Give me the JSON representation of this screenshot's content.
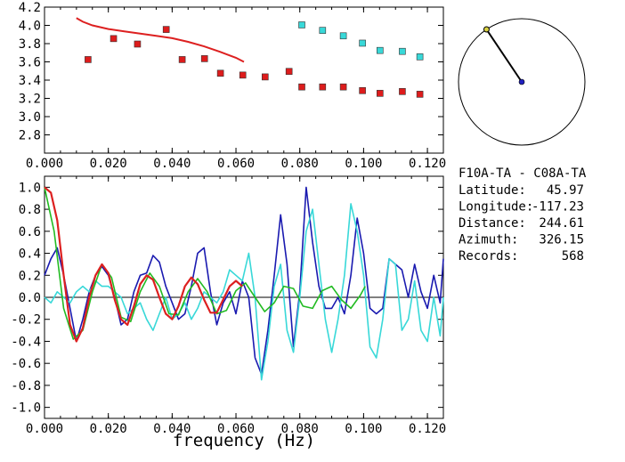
{
  "station_info": {
    "pair": "F10A-TA - C08A-TA",
    "rows": [
      {
        "label": "Latitude:",
        "value": "45.97"
      },
      {
        "label": "Longitude:",
        "value": "-117.23"
      },
      {
        "label": "Distance:",
        "value": "244.61"
      },
      {
        "label": "Azimuth:",
        "value": "326.15"
      },
      {
        "label": "Records:",
        "value": "568"
      }
    ]
  },
  "chart_data": [
    {
      "type": "scatter",
      "title": "",
      "xlabel": "",
      "ylabel": "",
      "xlim": [
        0,
        0.125
      ],
      "ylim": [
        2.6,
        4.2
      ],
      "xticks": [
        "0.000",
        "0.020",
        "0.040",
        "0.060",
        "0.080",
        "0.100",
        "0.120"
      ],
      "yticks": [
        "2.8",
        "3.0",
        "3.2",
        "3.4",
        "3.6",
        "3.8",
        "4.0",
        "4.2"
      ],
      "series": [
        {
          "kind": "curve",
          "color": "#dd2020",
          "x": [
            0.01,
            0.012,
            0.015,
            0.02,
            0.025,
            0.03,
            0.035,
            0.04,
            0.045,
            0.05,
            0.055,
            0.06,
            0.0625
          ],
          "y": [
            4.08,
            4.04,
            4.0,
            3.96,
            3.935,
            3.91,
            3.885,
            3.86,
            3.82,
            3.77,
            3.71,
            3.645,
            3.6
          ]
        },
        {
          "kind": "markers",
          "color": "#dd1c1c",
          "x": [
            0.0135,
            0.0215,
            0.029,
            0.038,
            0.043,
            0.05,
            0.055,
            0.062,
            0.069,
            0.0765,
            0.0805,
            0.087,
            0.0935,
            0.0995,
            0.105,
            0.112,
            0.1175
          ],
          "y": [
            3.63,
            3.86,
            3.8,
            3.96,
            3.63,
            3.64,
            3.48,
            3.46,
            3.44,
            3.5,
            3.33,
            3.33,
            3.33,
            3.29,
            3.26,
            3.28,
            3.25
          ]
        },
        {
          "kind": "markers",
          "color": "#38d8d8",
          "x": [
            0.0805,
            0.087,
            0.0935,
            0.0995,
            0.105,
            0.112,
            0.1175
          ],
          "y": [
            4.01,
            3.95,
            3.89,
            3.81,
            3.73,
            3.72,
            3.66
          ]
        }
      ]
    },
    {
      "type": "line",
      "title": "",
      "xlabel": "frequency (Hz)",
      "ylabel": "",
      "xlim": [
        0,
        0.125
      ],
      "ylim": [
        -1.1,
        1.1
      ],
      "xticks": [
        "0.000",
        "0.020",
        "0.040",
        "0.060",
        "0.080",
        "0.100",
        "0.120"
      ],
      "yticks": [
        "-1.0",
        "-0.8",
        "-0.6",
        "-0.4",
        "-0.2",
        "0.0",
        "0.2",
        "0.4",
        "0.6",
        "0.8",
        "1.0"
      ],
      "series": [
        {
          "color": "#1a1ab0",
          "x": [
            0.0,
            0.002,
            0.004,
            0.006,
            0.008,
            0.01,
            0.012,
            0.014,
            0.016,
            0.018,
            0.02,
            0.022,
            0.024,
            0.026,
            0.028,
            0.03,
            0.032,
            0.034,
            0.036,
            0.038,
            0.04,
            0.042,
            0.044,
            0.046,
            0.048,
            0.05,
            0.052,
            0.054,
            0.056,
            0.058,
            0.06,
            0.062,
            0.064,
            0.066,
            0.068,
            0.07,
            0.072,
            0.074,
            0.076,
            0.078,
            0.08,
            0.082,
            0.084,
            0.086,
            0.088,
            0.09,
            0.092,
            0.094,
            0.096,
            0.098,
            0.1,
            0.102,
            0.104,
            0.106,
            0.108,
            0.11,
            0.112,
            0.114,
            0.116,
            0.118,
            0.12,
            0.122,
            0.124,
            0.125
          ],
          "y": [
            0.2,
            0.35,
            0.45,
            0.2,
            -0.1,
            -0.4,
            -0.2,
            0.05,
            0.2,
            0.28,
            0.2,
            0.0,
            -0.25,
            -0.2,
            0.05,
            0.2,
            0.22,
            0.38,
            0.32,
            0.1,
            -0.05,
            -0.2,
            -0.15,
            0.1,
            0.4,
            0.45,
            0.05,
            -0.25,
            -0.05,
            0.05,
            -0.15,
            0.15,
            0.0,
            -0.55,
            -0.7,
            -0.3,
            0.2,
            0.75,
            0.3,
            -0.45,
            0.05,
            1.0,
            0.5,
            0.1,
            -0.1,
            -0.1,
            0.0,
            -0.15,
            0.2,
            0.72,
            0.4,
            -0.1,
            -0.15,
            -0.1,
            0.35,
            0.3,
            0.25,
            0.0,
            0.3,
            0.05,
            -0.1,
            0.2,
            -0.05,
            0.35
          ]
        },
        {
          "color": "#38d8d8",
          "x": [
            0.0,
            0.002,
            0.004,
            0.006,
            0.008,
            0.01,
            0.012,
            0.014,
            0.016,
            0.018,
            0.02,
            0.022,
            0.024,
            0.026,
            0.028,
            0.03,
            0.032,
            0.034,
            0.036,
            0.038,
            0.04,
            0.042,
            0.044,
            0.046,
            0.048,
            0.05,
            0.052,
            0.054,
            0.056,
            0.058,
            0.06,
            0.062,
            0.064,
            0.066,
            0.068,
            0.07,
            0.072,
            0.074,
            0.076,
            0.078,
            0.08,
            0.082,
            0.084,
            0.086,
            0.088,
            0.09,
            0.092,
            0.094,
            0.096,
            0.098,
            0.1,
            0.102,
            0.104,
            0.106,
            0.108,
            0.11,
            0.112,
            0.114,
            0.116,
            0.118,
            0.12,
            0.122,
            0.124,
            0.125
          ],
          "y": [
            0.0,
            -0.05,
            0.05,
            0.0,
            -0.05,
            0.05,
            0.1,
            0.05,
            0.15,
            0.1,
            0.1,
            0.05,
            0.0,
            -0.15,
            -0.1,
            -0.05,
            -0.2,
            -0.3,
            -0.15,
            0.0,
            -0.2,
            -0.15,
            -0.05,
            -0.2,
            -0.1,
            0.05,
            0.0,
            -0.05,
            0.05,
            0.25,
            0.2,
            0.15,
            0.4,
            0.0,
            -0.75,
            -0.4,
            0.1,
            0.3,
            -0.3,
            -0.5,
            0.0,
            0.6,
            0.8,
            0.3,
            -0.2,
            -0.5,
            -0.2,
            0.2,
            0.85,
            0.6,
            0.2,
            -0.45,
            -0.55,
            -0.2,
            0.35,
            0.3,
            -0.3,
            -0.2,
            0.15,
            -0.3,
            -0.4,
            0.0,
            -0.35,
            0.0
          ]
        },
        {
          "color": "#22bb22",
          "x": [
            0.0,
            0.003,
            0.006,
            0.009,
            0.012,
            0.015,
            0.018,
            0.021,
            0.024,
            0.027,
            0.03,
            0.033,
            0.036,
            0.039,
            0.042,
            0.045,
            0.048,
            0.051,
            0.054,
            0.057,
            0.06,
            0.063,
            0.066,
            0.069,
            0.072,
            0.075,
            0.078,
            0.081,
            0.084,
            0.087,
            0.09,
            0.093,
            0.096,
            0.099,
            0.1005
          ],
          "y": [
            1.0,
            0.6,
            -0.1,
            -0.38,
            -0.3,
            0.05,
            0.3,
            0.18,
            -0.18,
            -0.22,
            0.05,
            0.22,
            0.1,
            -0.15,
            -0.16,
            0.05,
            0.17,
            0.05,
            -0.15,
            -0.12,
            0.06,
            0.13,
            0.0,
            -0.13,
            -0.05,
            0.1,
            0.08,
            -0.08,
            -0.1,
            0.06,
            0.1,
            -0.02,
            -0.1,
            0.02,
            0.1
          ]
        },
        {
          "color": "#dd2020",
          "x": [
            0.0,
            0.002,
            0.004,
            0.006,
            0.008,
            0.01,
            0.012,
            0.014,
            0.016,
            0.018,
            0.02,
            0.022,
            0.024,
            0.026,
            0.028,
            0.03,
            0.032,
            0.034,
            0.036,
            0.038,
            0.04,
            0.042,
            0.044,
            0.046,
            0.048,
            0.05,
            0.052,
            0.054,
            0.056,
            0.058,
            0.06,
            0.062
          ],
          "y": [
            1.0,
            0.95,
            0.7,
            0.2,
            -0.25,
            -0.4,
            -0.28,
            0.0,
            0.2,
            0.3,
            0.22,
            -0.02,
            -0.2,
            -0.25,
            -0.08,
            0.12,
            0.2,
            0.16,
            0.0,
            -0.15,
            -0.2,
            -0.08,
            0.1,
            0.18,
            0.12,
            -0.02,
            -0.14,
            -0.14,
            -0.02,
            0.1,
            0.15,
            0.1
          ]
        }
      ]
    },
    {
      "type": "azimuth-dial",
      "azimuth_deg": 326.15,
      "colors": {
        "line": "#000000",
        "outer_dot": "#d8d040",
        "center_dot": "#2020c0"
      }
    }
  ]
}
